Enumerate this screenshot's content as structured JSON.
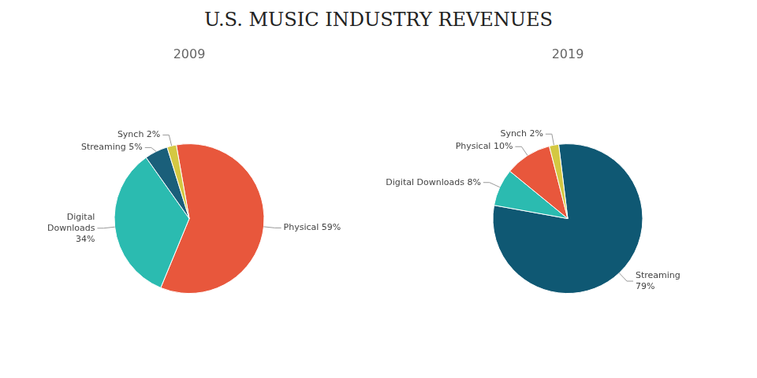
{
  "title": "U.S. MUSIC INDUSTRY REVENUES",
  "chart_data": [
    {
      "type": "pie",
      "title": "2009",
      "categories": [
        "Physical 59%",
        "Digital\nDownloads\n34%",
        "Streaming 5%",
        "Synch 2%"
      ],
      "values": [
        59,
        34,
        5,
        2
      ],
      "colors": [
        "#E8573C",
        "#2BBBB0",
        "#1A5F7A",
        "#D4C842"
      ]
    },
    {
      "type": "pie",
      "title": "2019",
      "categories": [
        "Streaming\n79%",
        "Digital Downloads 8%",
        "Physical 10%",
        "Synch 2%"
      ],
      "values": [
        79,
        8,
        10,
        2
      ],
      "colors": [
        "#0F5873",
        "#2BBBB0",
        "#E8573C",
        "#D4C842"
      ]
    }
  ]
}
